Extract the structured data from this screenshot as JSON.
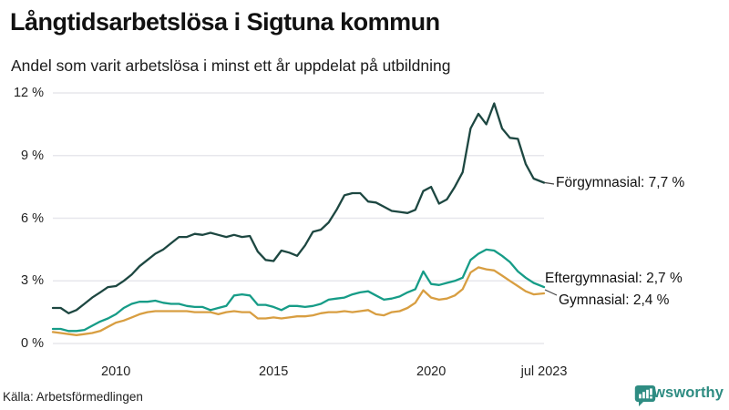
{
  "header": {
    "title": "Långtidsarbetslösa i Sigtuna kommun",
    "subtitle": "Andel som varit arbetslösa i minst ett år uppdelat på utbildning"
  },
  "footer": {
    "source": "Källa: Arbetsförmedlingen",
    "brand": "Newsworthy",
    "brand_color": "#2e8c82",
    "brand_icon": "bar-chart-speech-bubble-icon"
  },
  "colors": {
    "grid": "#e7e7ec",
    "text": "#1c1c1c",
    "leader": "#444444"
  },
  "chart_data": {
    "type": "line",
    "title": "Långtidsarbetslösa i Sigtuna kommun",
    "subtitle": "Andel som varit arbetslösa i minst ett år uppdelat på utbildning",
    "xlabel": "",
    "ylabel": "",
    "xlim": [
      2008.0,
      2023.58
    ],
    "ylim": [
      0,
      12
    ],
    "grid": "horizontal",
    "legend_position": "line-end-labels",
    "yticks": [
      {
        "value": 0,
        "label": "0 %"
      },
      {
        "value": 3,
        "label": "3 %"
      },
      {
        "value": 6,
        "label": "6 %"
      },
      {
        "value": 9,
        "label": "9 %"
      },
      {
        "value": 12,
        "label": "12 %"
      }
    ],
    "xticks": [
      {
        "value": 2010,
        "label": "2010"
      },
      {
        "value": 2015,
        "label": "2015"
      },
      {
        "value": 2020,
        "label": "2020"
      },
      {
        "value": 2023.58,
        "label": "jul 2023"
      }
    ],
    "x": [
      2008,
      2008.25,
      2008.5,
      2008.75,
      2009,
      2009.25,
      2009.5,
      2009.75,
      2010,
      2010.25,
      2010.5,
      2010.75,
      2011,
      2011.25,
      2011.5,
      2011.75,
      2012,
      2012.25,
      2012.5,
      2012.75,
      2013,
      2013.25,
      2013.5,
      2013.75,
      2014,
      2014.25,
      2014.5,
      2014.75,
      2015,
      2015.25,
      2015.5,
      2015.75,
      2016,
      2016.25,
      2016.5,
      2016.75,
      2017,
      2017.25,
      2017.5,
      2017.75,
      2018,
      2018.25,
      2018.5,
      2018.75,
      2019,
      2019.25,
      2019.5,
      2019.75,
      2020,
      2020.25,
      2020.5,
      2020.75,
      2021,
      2021.25,
      2021.5,
      2021.75,
      2022,
      2022.25,
      2022.5,
      2022.75,
      2023,
      2023.25,
      2023.58
    ],
    "series": [
      {
        "name": "Förgymnasial",
        "end_label": "Förgymnasial: 7,7 %",
        "end_value_pct": 7.7,
        "color": "#1d4741",
        "values": [
          1.7,
          1.7,
          1.45,
          1.6,
          1.9,
          2.2,
          2.45,
          2.7,
          2.75,
          3.0,
          3.3,
          3.7,
          4.0,
          4.3,
          4.5,
          4.8,
          5.1,
          5.1,
          5.25,
          5.2,
          5.3,
          5.2,
          5.1,
          5.2,
          5.1,
          5.15,
          4.4,
          4.0,
          3.95,
          4.45,
          4.35,
          4.2,
          4.7,
          5.35,
          5.45,
          5.8,
          6.4,
          7.1,
          7.2,
          7.2,
          6.8,
          6.75,
          6.55,
          6.35,
          6.3,
          6.25,
          6.4,
          7.3,
          7.5,
          6.7,
          6.9,
          7.5,
          8.2,
          10.3,
          11.0,
          10.5,
          11.5,
          10.3,
          9.85,
          9.8,
          8.6,
          7.9,
          7.7
        ]
      },
      {
        "name": "Eftergymnasial",
        "end_label": "Eftergymnasial: 2,7 %",
        "end_value_pct": 2.7,
        "color": "#169c87",
        "values": [
          0.7,
          0.7,
          0.6,
          0.6,
          0.65,
          0.85,
          1.05,
          1.2,
          1.4,
          1.7,
          1.9,
          2.0,
          2.0,
          2.05,
          1.95,
          1.9,
          1.9,
          1.8,
          1.75,
          1.75,
          1.6,
          1.7,
          1.8,
          2.3,
          2.35,
          2.3,
          1.85,
          1.85,
          1.75,
          1.6,
          1.8,
          1.8,
          1.75,
          1.8,
          1.9,
          2.1,
          2.15,
          2.2,
          2.35,
          2.45,
          2.5,
          2.3,
          2.1,
          2.15,
          2.25,
          2.45,
          2.6,
          3.45,
          2.85,
          2.8,
          2.9,
          3.0,
          3.15,
          4.0,
          4.3,
          4.5,
          4.45,
          4.2,
          3.9,
          3.45,
          3.15,
          2.9,
          2.7
        ]
      },
      {
        "name": "Gymnasial",
        "end_label": "Gymnasial: 2,4 %",
        "end_value_pct": 2.4,
        "color": "#d89e41",
        "values": [
          0.55,
          0.5,
          0.45,
          0.4,
          0.45,
          0.5,
          0.6,
          0.8,
          1.0,
          1.1,
          1.25,
          1.4,
          1.5,
          1.55,
          1.55,
          1.55,
          1.55,
          1.55,
          1.5,
          1.5,
          1.5,
          1.4,
          1.5,
          1.55,
          1.5,
          1.5,
          1.2,
          1.2,
          1.25,
          1.2,
          1.25,
          1.3,
          1.3,
          1.35,
          1.45,
          1.5,
          1.5,
          1.55,
          1.5,
          1.55,
          1.6,
          1.4,
          1.35,
          1.5,
          1.55,
          1.7,
          1.95,
          2.55,
          2.2,
          2.1,
          2.15,
          2.3,
          2.6,
          3.4,
          3.65,
          3.55,
          3.5,
          3.25,
          3.0,
          2.75,
          2.5,
          2.35,
          2.4
        ]
      }
    ]
  }
}
